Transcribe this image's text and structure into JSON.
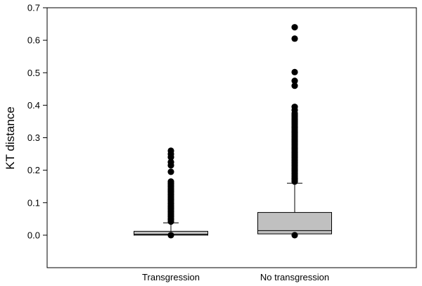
{
  "chart_data": {
    "type": "box",
    "title": "",
    "xlabel": "",
    "ylabel": "KT distance",
    "ylim": [
      -0.1,
      0.7
    ],
    "yticks": [
      "0.0",
      "0.1",
      "0.2",
      "0.3",
      "0.4",
      "0.5",
      "0.6",
      "0.7"
    ],
    "grid": false,
    "box_color": "#c0c0c0",
    "outlier_color": "#000000",
    "categories": [
      "Transgression",
      "No transgression"
    ],
    "boxes": [
      {
        "name": "Transgression",
        "min": 0.0,
        "q1": 0.0,
        "median": 0.003,
        "q3": 0.012,
        "whisker_high": 0.038,
        "outliers": [
          0.0,
          0.042,
          0.048,
          0.052,
          0.058,
          0.063,
          0.068,
          0.073,
          0.078,
          0.083,
          0.088,
          0.093,
          0.098,
          0.105,
          0.11,
          0.115,
          0.12,
          0.125,
          0.13,
          0.135,
          0.14,
          0.145,
          0.15,
          0.155,
          0.16,
          0.165,
          0.195,
          0.215,
          0.225,
          0.24,
          0.25,
          0.26
        ]
      },
      {
        "name": "No transgression",
        "min": 0.0,
        "q1": 0.004,
        "median": 0.014,
        "q3": 0.07,
        "whisker_high": 0.16,
        "outliers": [
          0.0,
          0.165,
          0.17,
          0.175,
          0.18,
          0.185,
          0.19,
          0.195,
          0.2,
          0.205,
          0.21,
          0.215,
          0.22,
          0.225,
          0.23,
          0.235,
          0.24,
          0.245,
          0.25,
          0.255,
          0.26,
          0.265,
          0.27,
          0.275,
          0.28,
          0.285,
          0.29,
          0.295,
          0.3,
          0.305,
          0.31,
          0.315,
          0.32,
          0.325,
          0.33,
          0.335,
          0.34,
          0.345,
          0.35,
          0.355,
          0.36,
          0.365,
          0.37,
          0.375,
          0.385,
          0.395,
          0.46,
          0.475,
          0.502,
          0.605,
          0.64
        ]
      }
    ]
  }
}
